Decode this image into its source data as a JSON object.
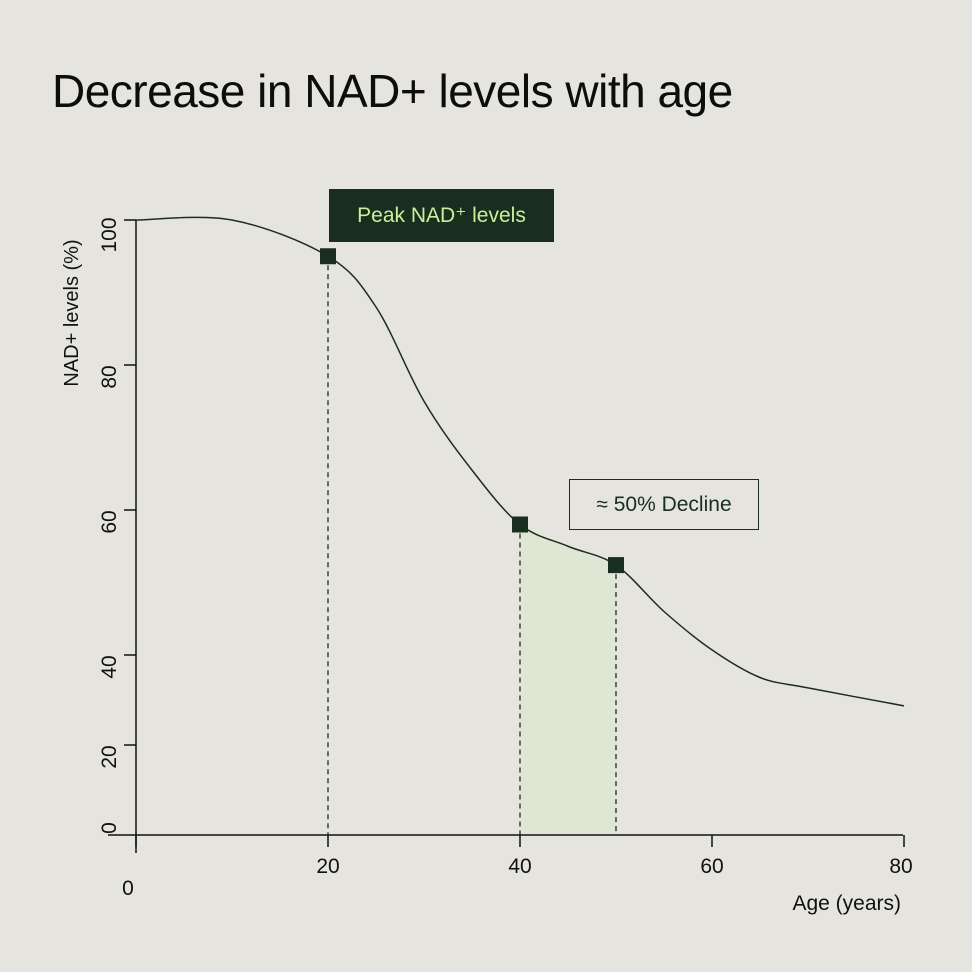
{
  "chart_data": {
    "type": "line",
    "title": "Decrease in NAD+ levels with age",
    "xlabel": "Age (years)",
    "ylabel": "NAD+ levels (%)",
    "xlim": [
      0,
      80
    ],
    "ylim": [
      0,
      100
    ],
    "x_ticks": [
      0,
      20,
      40,
      60,
      80
    ],
    "y_ticks": [
      0,
      20,
      40,
      60,
      80,
      100
    ],
    "x_tick_labels": [
      "0",
      "20",
      "40",
      "60",
      "80"
    ],
    "y_tick_labels": [
      "0",
      "20",
      "40",
      "60",
      "80",
      "100"
    ],
    "grid": false,
    "series": [
      {
        "name": "NAD+ levels",
        "x": [
          0,
          10,
          20,
          25,
          30,
          35,
          40,
          45,
          50,
          55,
          60,
          65,
          70,
          80
        ],
        "y": [
          100,
          100,
          95,
          88,
          75,
          65.5,
          58,
          55,
          52.4,
          46,
          40.7,
          35,
          32.7,
          28.7
        ]
      }
    ],
    "markers": [
      {
        "x": 20,
        "y": 95
      },
      {
        "x": 40,
        "y": 58
      },
      {
        "x": 50,
        "y": 52.4
      }
    ],
    "shaded_range": [
      40,
      50
    ],
    "annotations": [
      {
        "text": "Peak NAD⁺ levels",
        "x": 20
      },
      {
        "text": "≈ 50% Decline",
        "x": 45
      }
    ],
    "colors": {
      "line": "#1a2e20",
      "marker": "#1a2e20",
      "shade": "#e0e6d4",
      "peak_bg": "#1a2e20",
      "peak_text": "#c9ef9c"
    }
  }
}
